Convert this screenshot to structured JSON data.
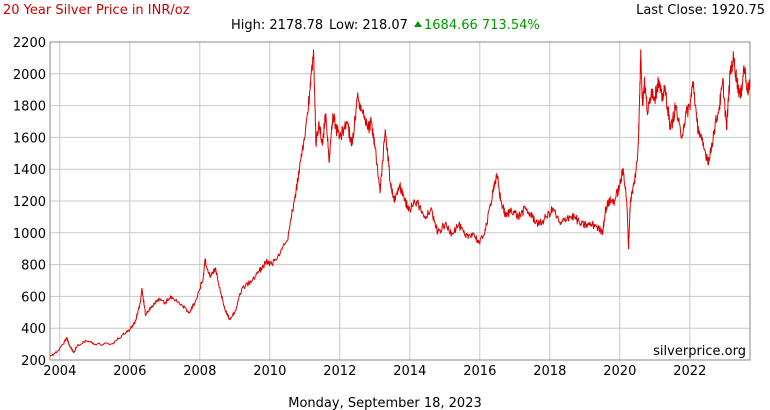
{
  "chart_data": {
    "type": "line",
    "title": "20 Year Silver Price in INR/oz",
    "stats": {
      "high_text": "High: 2178.78",
      "low_text": "Low: 218.07",
      "change_text": "1684.66 713.54%",
      "last_close_text": "Last Close: 1920.75"
    },
    "watermark": "silverprice.org",
    "footer_date": "Monday, September 18, 2023",
    "x_ticks": [
      "2004",
      "2006",
      "2008",
      "2010",
      "2012",
      "2014",
      "2016",
      "2018",
      "2020",
      "2022"
    ],
    "y_ticks": [
      "200",
      "400",
      "600",
      "800",
      "1000",
      "1200",
      "1400",
      "1600",
      "1800",
      "2000",
      "2200"
    ],
    "xlim": [
      2003.72,
      2023.72
    ],
    "ylim": [
      200,
      2200
    ],
    "grid": true,
    "colors": {
      "title": "#cc0000",
      "line": "#dd0000",
      "change": "#009900",
      "grid": "#c8c8c8",
      "axis": "#888888",
      "text": "#000000"
    },
    "series": [
      {
        "x": [
          2003.72,
          2003.9,
          2004.1,
          2004.2,
          2004.3,
          2004.4,
          2004.5,
          2004.75,
          2005.0,
          2005.5,
          2005.8,
          2006.0,
          2006.15,
          2006.3,
          2006.35,
          2006.45,
          2006.6,
          2006.8,
          2007.0,
          2007.2,
          2007.5,
          2007.7,
          2007.9,
          2008.1,
          2008.15,
          2008.3,
          2008.45,
          2008.6,
          2008.75,
          2008.85,
          2009.0,
          2009.2,
          2009.5,
          2009.7,
          2009.9,
          2010.0,
          2010.2,
          2010.5,
          2010.7,
          2010.85,
          2011.0,
          2011.15,
          2011.25,
          2011.32,
          2011.4,
          2011.5,
          2011.6,
          2011.7,
          2011.8,
          2011.9,
          2012.0,
          2012.2,
          2012.35,
          2012.5,
          2012.65,
          2012.8,
          2012.9,
          2013.0,
          2013.15,
          2013.3,
          2013.45,
          2013.55,
          2013.7,
          2013.85,
          2014.0,
          2014.2,
          2014.4,
          2014.6,
          2014.8,
          2015.0,
          2015.2,
          2015.4,
          2015.6,
          2015.8,
          2016.0,
          2016.2,
          2016.4,
          2016.5,
          2016.6,
          2016.75,
          2016.9,
          2017.1,
          2017.3,
          2017.5,
          2017.7,
          2017.9,
          2018.1,
          2018.3,
          2018.5,
          2018.7,
          2018.9,
          2019.1,
          2019.3,
          2019.5,
          2019.6,
          2019.7,
          2019.85,
          2020.0,
          2020.1,
          2020.2,
          2020.25,
          2020.3,
          2020.4,
          2020.5,
          2020.55,
          2020.6,
          2020.65,
          2020.7,
          2020.8,
          2020.9,
          2021.0,
          2021.1,
          2021.2,
          2021.3,
          2021.45,
          2021.6,
          2021.75,
          2021.9,
          2022.0,
          2022.1,
          2022.2,
          2022.3,
          2022.45,
          2022.55,
          2022.7,
          2022.85,
          2022.95,
          2023.05,
          2023.15,
          2023.25,
          2023.35,
          2023.45,
          2023.55,
          2023.65,
          2023.72
        ],
        "y": [
          230,
          245,
          300,
          340,
          280,
          250,
          290,
          320,
          300,
          300,
          360,
          390,
          440,
          560,
          650,
          480,
          530,
          580,
          560,
          600,
          540,
          500,
          580,
          720,
          830,
          720,
          780,
          620,
          500,
          460,
          500,
          650,
          700,
          760,
          820,
          800,
          830,
          950,
          1200,
          1400,
          1600,
          1900,
          2150,
          1550,
          1700,
          1550,
          1750,
          1450,
          1750,
          1650,
          1600,
          1700,
          1550,
          1850,
          1750,
          1650,
          1700,
          1550,
          1250,
          1650,
          1300,
          1200,
          1300,
          1200,
          1150,
          1200,
          1100,
          1150,
          1000,
          1050,
          1000,
          1050,
          970,
          1000,
          930,
          1050,
          1300,
          1350,
          1200,
          1100,
          1150,
          1100,
          1150,
          1100,
          1050,
          1100,
          1150,
          1050,
          1100,
          1100,
          1050,
          1050,
          1050,
          1000,
          1150,
          1200,
          1200,
          1300,
          1400,
          1200,
          900,
          1200,
          1300,
          1450,
          1700,
          2150,
          1800,
          1950,
          1750,
          1900,
          1850,
          1950,
          1850,
          1900,
          1650,
          1800,
          1600,
          1750,
          1800,
          1950,
          1700,
          1600,
          1500,
          1450,
          1650,
          1800,
          1950,
          1650,
          2000,
          2100,
          1950,
          1850,
          2050,
          1900,
          1920
        ]
      }
    ]
  }
}
